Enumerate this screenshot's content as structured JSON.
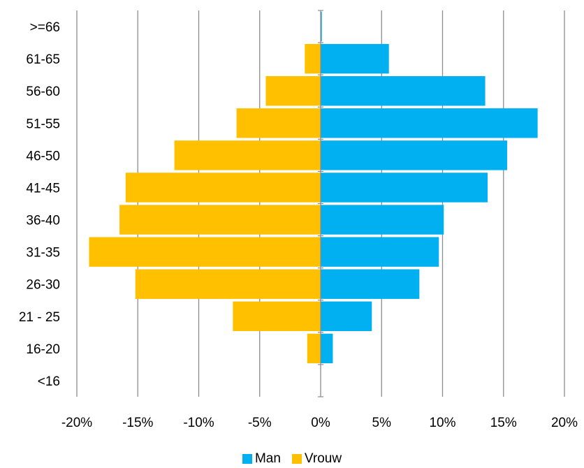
{
  "chart_data": {
    "type": "bar",
    "orientation": "horizontal",
    "stacked": "diverging",
    "categories": [
      "<16",
      "16-20",
      "21 - 25",
      "26-30",
      "31-35",
      "36-40",
      "41-45",
      "46-50",
      "51-55",
      "56-60",
      "61-65",
      ">=66"
    ],
    "series": [
      {
        "name": "Man",
        "color": "#00B0F0",
        "values": [
          0,
          1.0,
          4.2,
          8.1,
          9.7,
          10.1,
          13.7,
          15.3,
          17.8,
          13.5,
          5.6,
          0.1
        ]
      },
      {
        "name": "Vrouw",
        "color": "#FFC000",
        "values": [
          0,
          -1.1,
          -7.2,
          -15.2,
          -19.0,
          -16.5,
          -16.0,
          -12.0,
          -6.9,
          -4.5,
          -1.3,
          0
        ]
      }
    ],
    "xlim": [
      -20,
      20
    ],
    "xticks": [
      -20,
      -15,
      -10,
      -5,
      0,
      5,
      10,
      15,
      20
    ],
    "xtick_labels": [
      "-20%",
      "-15%",
      "-10%",
      "-5%",
      "0%",
      "5%",
      "10%",
      "15%",
      "20%"
    ],
    "grid": "vertical",
    "legend": "bottom-center",
    "title": "",
    "xlabel": "",
    "ylabel": ""
  }
}
